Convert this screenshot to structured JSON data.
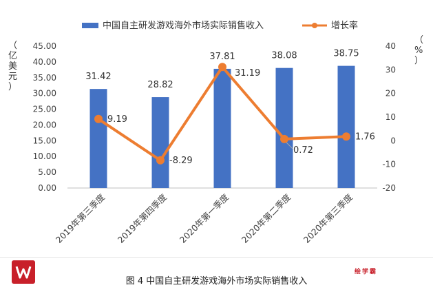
{
  "chart_data": {
    "type": "bar+line",
    "categories": [
      "2019年第三季度",
      "2019年第四季度",
      "2020年第一季度",
      "2020年第二季度",
      "2020年第三季度"
    ],
    "series": [
      {
        "name": "中国自主研发游戏海外市场实际销售收入",
        "type": "bar",
        "axis": "left",
        "values": [
          31.42,
          28.82,
          37.81,
          38.08,
          38.75
        ],
        "color": "#4472c4"
      },
      {
        "name": "增长率",
        "type": "line",
        "axis": "right",
        "values": [
          9.19,
          -8.29,
          31.19,
          0.72,
          1.76
        ],
        "color": "#ed7d31"
      }
    ],
    "bar_labels": [
      "31.42",
      "28.82",
      "37.81",
      "38.08",
      "38.75"
    ],
    "line_labels": [
      "9.19",
      "-8.29",
      "31.19",
      "0.72",
      "1.76"
    ],
    "left_axis": {
      "label": "（亿美元）",
      "range": [
        0,
        45
      ],
      "ticks": [
        "0.00",
        "5.00",
        "10.00",
        "15.00",
        "20.00",
        "25.00",
        "30.00",
        "35.00",
        "40.00",
        "45.00"
      ]
    },
    "right_axis": {
      "label": "（%）",
      "range": [
        -20,
        40
      ],
      "ticks": [
        "-20",
        "-10",
        "0",
        "10",
        "20",
        "30",
        "40"
      ]
    },
    "legend_position": "top",
    "grid": false
  },
  "caption": "图 4  中国自主研发游戏海外市场实际销售收入",
  "watermark": "绘学霸"
}
